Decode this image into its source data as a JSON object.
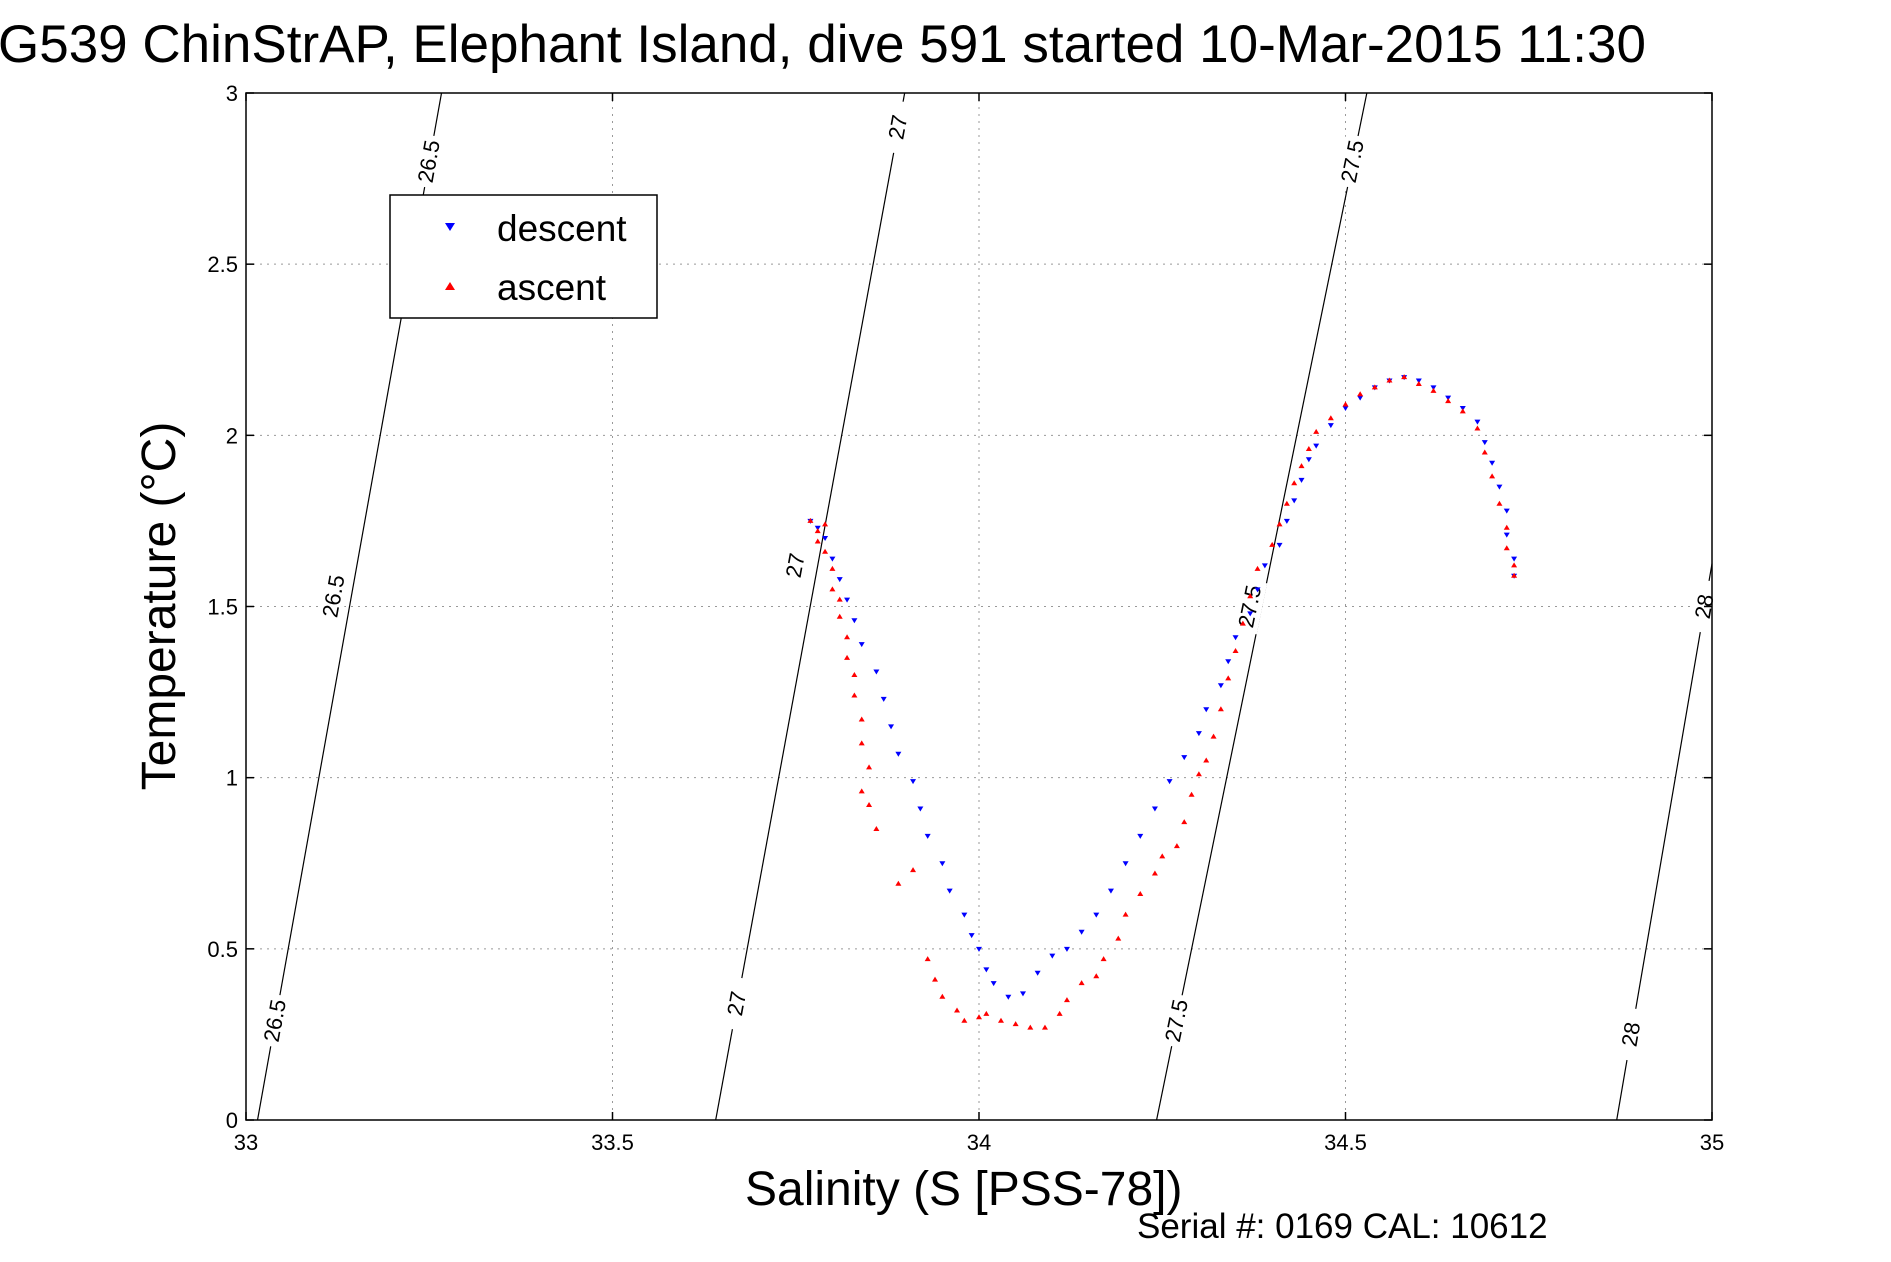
{
  "chart_data": {
    "type": "scatter",
    "title": "G539 ChinStrAP, Elephant Island, dive 591 started 10-Mar-2015 11:30",
    "xlabel": "Salinity (S [PSS-78])",
    "ylabel": "Temperature (°C)",
    "xlim": [
      33,
      35
    ],
    "ylim": [
      0,
      3
    ],
    "x_ticks": [
      "33",
      "33.5",
      "34",
      "34.5",
      "35"
    ],
    "y_ticks": [
      "0",
      "0.5",
      "1",
      "1.5",
      "2",
      "2.5",
      "3"
    ],
    "grid": true,
    "legend_position": "top-left",
    "footer": "Serial #: 0169 CAL: 10612",
    "series": [
      {
        "name": "descent",
        "marker": "triangle-down",
        "color": "#0000ff",
        "points": [
          [
            33.77,
            1.75
          ],
          [
            33.78,
            1.73
          ],
          [
            33.79,
            1.7
          ],
          [
            33.8,
            1.64
          ],
          [
            33.81,
            1.58
          ],
          [
            33.82,
            1.52
          ],
          [
            33.83,
            1.46
          ],
          [
            33.84,
            1.39
          ],
          [
            33.86,
            1.31
          ],
          [
            33.87,
            1.23
          ],
          [
            33.88,
            1.15
          ],
          [
            33.89,
            1.07
          ],
          [
            33.91,
            0.99
          ],
          [
            33.92,
            0.91
          ],
          [
            33.93,
            0.83
          ],
          [
            33.95,
            0.75
          ],
          [
            33.96,
            0.67
          ],
          [
            33.98,
            0.6
          ],
          [
            33.99,
            0.54
          ],
          [
            34.0,
            0.5
          ],
          [
            34.01,
            0.44
          ],
          [
            34.02,
            0.4
          ],
          [
            34.04,
            0.36
          ],
          [
            34.06,
            0.37
          ],
          [
            34.08,
            0.43
          ],
          [
            34.1,
            0.48
          ],
          [
            34.12,
            0.5
          ],
          [
            34.14,
            0.55
          ],
          [
            34.16,
            0.6
          ],
          [
            34.18,
            0.67
          ],
          [
            34.2,
            0.75
          ],
          [
            34.22,
            0.83
          ],
          [
            34.24,
            0.91
          ],
          [
            34.26,
            0.99
          ],
          [
            34.28,
            1.06
          ],
          [
            34.3,
            1.13
          ],
          [
            34.31,
            1.2
          ],
          [
            34.33,
            1.27
          ],
          [
            34.34,
            1.34
          ],
          [
            34.35,
            1.41
          ],
          [
            34.37,
            1.48
          ],
          [
            34.38,
            1.55
          ],
          [
            34.39,
            1.62
          ],
          [
            34.41,
            1.68
          ],
          [
            34.42,
            1.75
          ],
          [
            34.43,
            1.81
          ],
          [
            34.44,
            1.87
          ],
          [
            34.45,
            1.93
          ],
          [
            34.46,
            1.97
          ],
          [
            34.48,
            2.03
          ],
          [
            34.5,
            2.08
          ],
          [
            34.52,
            2.11
          ],
          [
            34.54,
            2.14
          ],
          [
            34.56,
            2.16
          ],
          [
            34.58,
            2.17
          ],
          [
            34.6,
            2.16
          ],
          [
            34.62,
            2.14
          ],
          [
            34.64,
            2.11
          ],
          [
            34.66,
            2.08
          ],
          [
            34.68,
            2.04
          ],
          [
            34.69,
            1.98
          ],
          [
            34.7,
            1.92
          ],
          [
            34.71,
            1.85
          ],
          [
            34.72,
            1.78
          ],
          [
            34.72,
            1.71
          ],
          [
            34.73,
            1.64
          ],
          [
            34.73,
            1.59
          ]
        ]
      },
      {
        "name": "ascent",
        "marker": "triangle-up",
        "color": "#ff0000",
        "points": [
          [
            33.77,
            1.75
          ],
          [
            33.78,
            1.72
          ],
          [
            33.78,
            1.69
          ],
          [
            33.79,
            1.74
          ],
          [
            33.79,
            1.66
          ],
          [
            33.8,
            1.61
          ],
          [
            33.8,
            1.55
          ],
          [
            33.81,
            1.52
          ],
          [
            33.81,
            1.47
          ],
          [
            33.82,
            1.41
          ],
          [
            33.82,
            1.35
          ],
          [
            33.83,
            1.3
          ],
          [
            33.83,
            1.24
          ],
          [
            33.84,
            1.17
          ],
          [
            33.84,
            1.1
          ],
          [
            33.85,
            1.03
          ],
          [
            33.84,
            0.96
          ],
          [
            33.85,
            0.92
          ],
          [
            33.86,
            0.85
          ],
          [
            33.89,
            0.69
          ],
          [
            33.91,
            0.73
          ],
          [
            33.93,
            0.47
          ],
          [
            33.94,
            0.41
          ],
          [
            33.95,
            0.36
          ],
          [
            33.97,
            0.32
          ],
          [
            33.98,
            0.29
          ],
          [
            34.0,
            0.3
          ],
          [
            34.01,
            0.31
          ],
          [
            34.03,
            0.29
          ],
          [
            34.05,
            0.28
          ],
          [
            34.07,
            0.27
          ],
          [
            34.09,
            0.27
          ],
          [
            34.11,
            0.31
          ],
          [
            34.12,
            0.35
          ],
          [
            34.14,
            0.4
          ],
          [
            34.16,
            0.42
          ],
          [
            34.17,
            0.47
          ],
          [
            34.19,
            0.53
          ],
          [
            34.2,
            0.6
          ],
          [
            34.22,
            0.66
          ],
          [
            34.24,
            0.72
          ],
          [
            34.25,
            0.77
          ],
          [
            34.27,
            0.8
          ],
          [
            34.28,
            0.87
          ],
          [
            34.29,
            0.95
          ],
          [
            34.3,
            1.01
          ],
          [
            34.31,
            1.05
          ],
          [
            34.32,
            1.12
          ],
          [
            34.33,
            1.2
          ],
          [
            34.34,
            1.29
          ],
          [
            34.35,
            1.37
          ],
          [
            34.36,
            1.45
          ],
          [
            34.37,
            1.53
          ],
          [
            34.38,
            1.61
          ],
          [
            34.4,
            1.68
          ],
          [
            34.41,
            1.74
          ],
          [
            34.42,
            1.8
          ],
          [
            34.43,
            1.86
          ],
          [
            34.44,
            1.91
          ],
          [
            34.45,
            1.96
          ],
          [
            34.46,
            2.01
          ],
          [
            34.48,
            2.05
          ],
          [
            34.5,
            2.09
          ],
          [
            34.52,
            2.12
          ],
          [
            34.54,
            2.14
          ],
          [
            34.56,
            2.16
          ],
          [
            34.58,
            2.17
          ],
          [
            34.6,
            2.15
          ],
          [
            34.62,
            2.13
          ],
          [
            34.64,
            2.1
          ],
          [
            34.66,
            2.07
          ],
          [
            34.68,
            2.02
          ],
          [
            34.69,
            1.95
          ],
          [
            34.7,
            1.88
          ],
          [
            34.71,
            1.8
          ],
          [
            34.72,
            1.73
          ],
          [
            34.72,
            1.67
          ],
          [
            34.73,
            1.62
          ],
          [
            34.73,
            1.59
          ]
        ]
      }
    ],
    "isopycnals": [
      {
        "value": "26.5",
        "labels": [
          [
            33.04,
            0.29
          ],
          [
            33.12,
            1.53
          ],
          [
            33.25,
            2.8
          ]
        ]
      },
      {
        "value": "27",
        "labels": [
          [
            33.67,
            0.34
          ],
          [
            33.75,
            1.62
          ],
          [
            33.89,
            2.9
          ]
        ]
      },
      {
        "value": "27.5",
        "labels": [
          [
            34.27,
            0.29
          ],
          [
            34.37,
            1.5
          ],
          [
            34.51,
            2.8
          ]
        ]
      },
      {
        "value": "28",
        "labels": [
          [
            34.89,
            0.25
          ],
          [
            34.99,
            1.5
          ]
        ]
      }
    ]
  }
}
